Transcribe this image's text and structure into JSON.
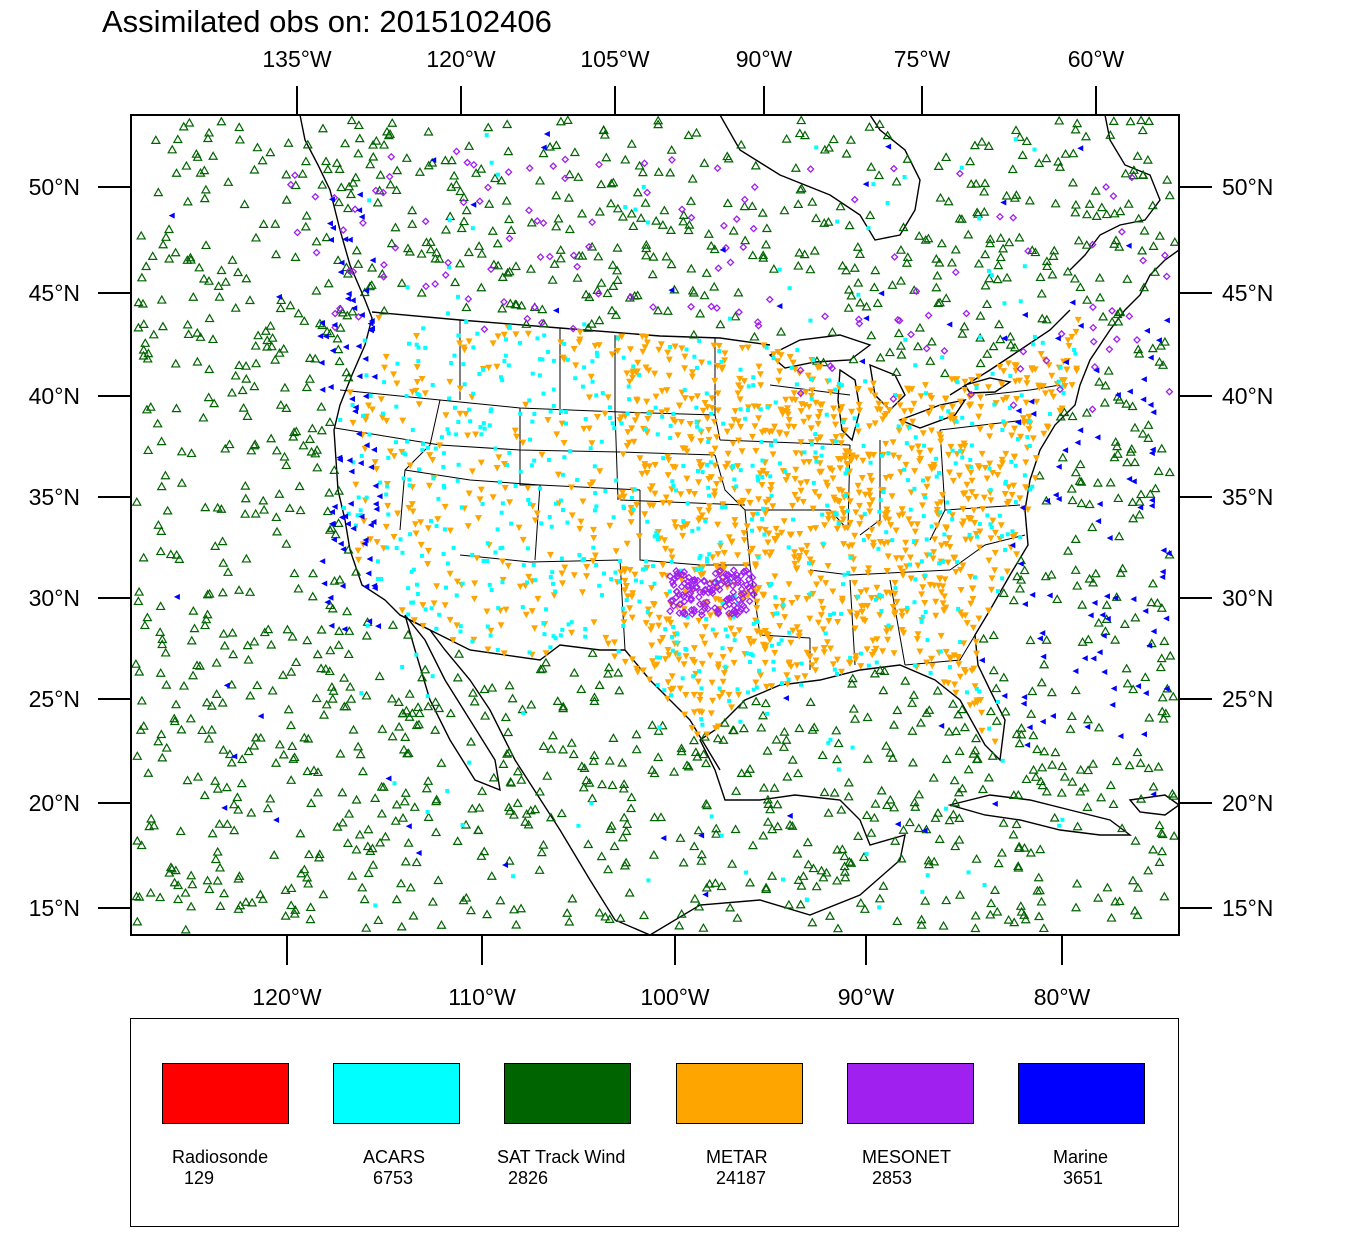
{
  "title": "Assimilated obs on: 2015102406",
  "axes": {
    "top_lon_ticks": [
      "135°W",
      "120°W",
      "105°W",
      "90°W",
      "75°W",
      "60°W"
    ],
    "bottom_lon_ticks": [
      "120°W",
      "110°W",
      "100°W",
      "90°W",
      "80°W"
    ],
    "lat_ticks": [
      "50°N",
      "45°N",
      "40°N",
      "35°N",
      "30°N",
      "25°N",
      "20°N",
      "15°N"
    ]
  },
  "legend": [
    {
      "name": "Radiosonde",
      "count": "129",
      "color": "#ff0000"
    },
    {
      "name": "ACARS",
      "count": "6753",
      "color": "#00ffff"
    },
    {
      "name": "SAT Track Wind",
      "count": "2826",
      "color": "#006400"
    },
    {
      "name": "METAR",
      "count": "24187",
      "color": "#ffa500"
    },
    {
      "name": "MESONET",
      "count": "2853",
      "color": "#a020f0"
    },
    {
      "name": "Marine",
      "count": "3651",
      "color": "#0000ff"
    }
  ]
}
